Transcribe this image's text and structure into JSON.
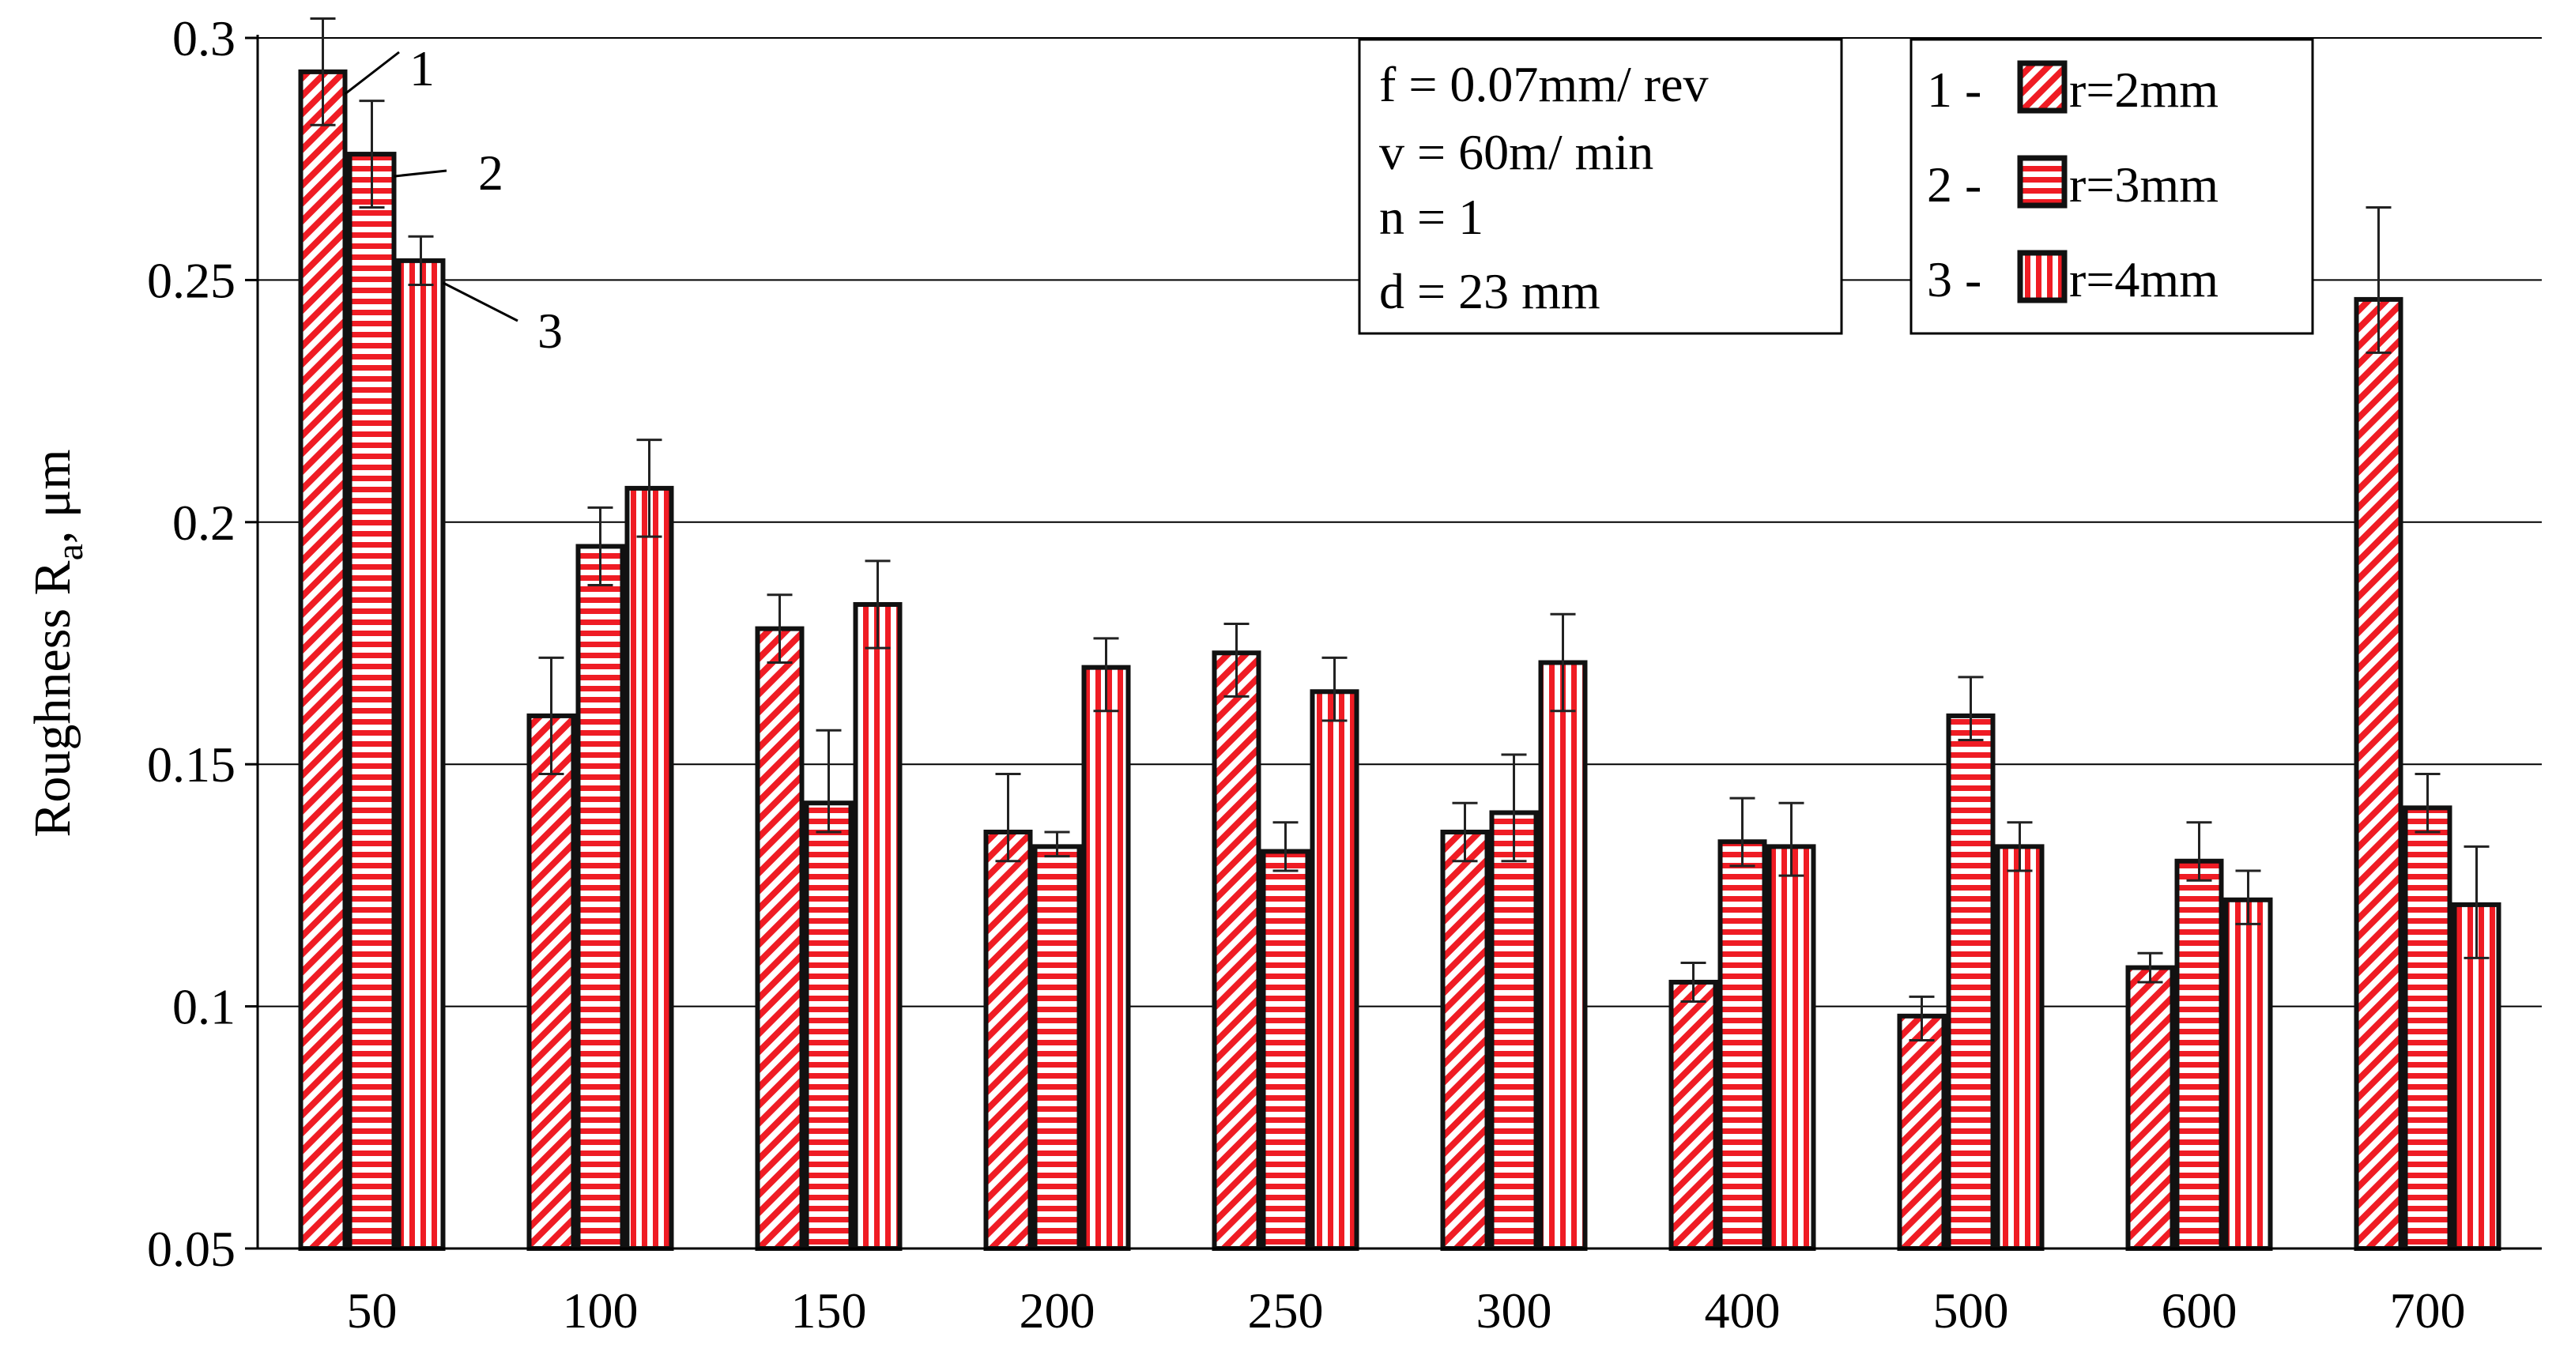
{
  "chart_data": {
    "type": "bar",
    "title": "",
    "xlabel": "",
    "ylabel": "Roughness R",
    "ylabel_sub": "a",
    "ylabel_unit": ", μm",
    "ylim": [
      0.05,
      0.3
    ],
    "yticks": [
      "0.05",
      "0.1",
      "0.15",
      "0.2",
      "0.25",
      "0.3"
    ],
    "grid": true,
    "categories": [
      "50",
      "100",
      "150",
      "200",
      "250",
      "300",
      "400",
      "500",
      "600",
      "700"
    ],
    "series": [
      {
        "name": "r=2mm",
        "index_label": "1 -",
        "pattern": "diagonal",
        "values": [
          0.293,
          0.16,
          0.178,
          0.136,
          0.173,
          0.136,
          0.105,
          0.098,
          0.108,
          0.246
        ],
        "err_high": [
          0.304,
          0.172,
          0.185,
          0.148,
          0.179,
          0.142,
          0.109,
          0.102,
          0.111,
          0.265
        ],
        "err_low": [
          0.282,
          0.148,
          0.171,
          0.13,
          0.164,
          0.13,
          0.101,
          0.093,
          0.105,
          0.235
        ]
      },
      {
        "name": "r=3mm",
        "index_label": "2 -",
        "pattern": "horizontal",
        "values": [
          0.276,
          0.195,
          0.142,
          0.133,
          0.132,
          0.14,
          0.134,
          0.16,
          0.13,
          0.141
        ],
        "err_high": [
          0.287,
          0.203,
          0.157,
          0.136,
          0.138,
          0.152,
          0.143,
          0.168,
          0.138,
          0.148
        ],
        "err_low": [
          0.265,
          0.187,
          0.136,
          0.131,
          0.128,
          0.13,
          0.129,
          0.155,
          0.126,
          0.136
        ]
      },
      {
        "name": "r=4mm",
        "index_label": "3 -",
        "pattern": "vertical",
        "values": [
          0.254,
          0.207,
          0.183,
          0.17,
          0.165,
          0.171,
          0.133,
          0.133,
          0.122,
          0.121
        ],
        "err_high": [
          0.259,
          0.217,
          0.192,
          0.176,
          0.172,
          0.181,
          0.142,
          0.138,
          0.128,
          0.133
        ],
        "err_low": [
          0.249,
          0.197,
          0.174,
          0.161,
          0.159,
          0.161,
          0.127,
          0.128,
          0.117,
          0.11
        ]
      }
    ],
    "bar_labels": [
      "1",
      "2",
      "3"
    ],
    "conditions": [
      "f = 0.07mm/ rev",
      "v = 60m/ min",
      "n = 1",
      "d = 23 mm"
    ],
    "legend_position": "top-right",
    "colors": {
      "stripe": "#ef1c24",
      "fill": "#ffffff",
      "edge": "#111111",
      "grid": "#000000"
    }
  }
}
